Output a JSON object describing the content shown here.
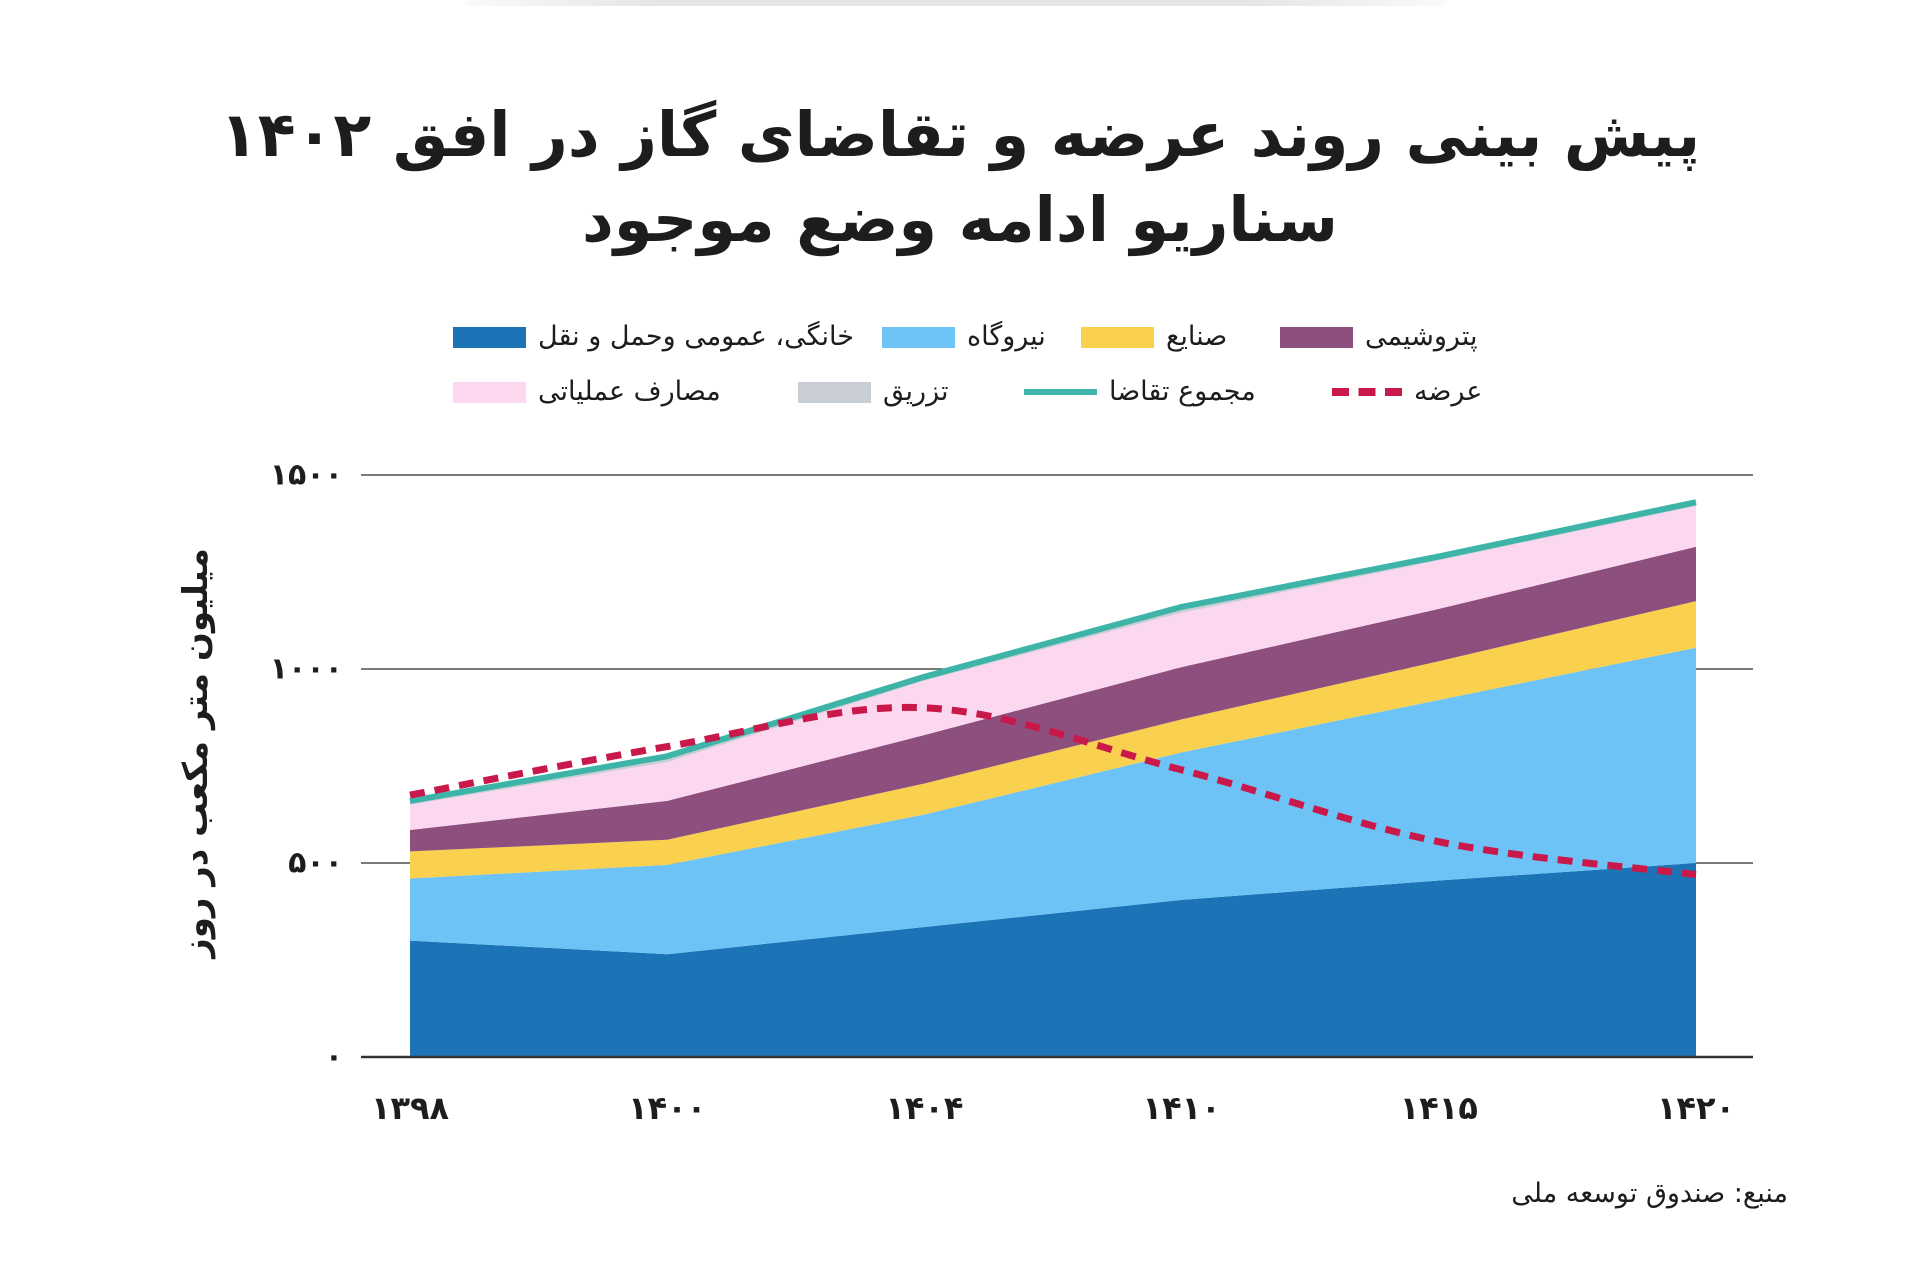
{
  "chart_data": {
    "type": "area",
    "title": "پیش بینی روند عرضه و تقاضای گاز در افق ۱۴۰۲",
    "subtitle": "سناریو ادامه وضع موجود",
    "ylabel": "میلیون متر مکعب در روز",
    "categories": [
      "۱۳۹۸",
      "۱۴۰۰",
      "۱۴۰۴",
      "۱۴۱۰",
      "۱۴۱۵",
      "۱۴۲۰"
    ],
    "ylim": [
      0,
      1500
    ],
    "y_ticks": [
      {
        "value": 0,
        "label": "۰"
      },
      {
        "value": 500,
        "label": "۵۰۰"
      },
      {
        "value": 1000,
        "label": "۱۰۰۰"
      },
      {
        "value": 1500,
        "label": "۱۵۰۰"
      }
    ],
    "grid": true,
    "stacked": true,
    "legend_position": "top",
    "stacked_series": [
      {
        "name": "خانگی، عمومی وحمل و نقل",
        "color": "#1c74b6",
        "values": [
          300,
          265,
          335,
          405,
          455,
          500
        ]
      },
      {
        "name": "نیروگاه",
        "color": "#6ec3f6",
        "values": [
          160,
          230,
          290,
          380,
          465,
          555
        ]
      },
      {
        "name": "صنایع",
        "color": "#fad04f",
        "values": [
          70,
          65,
          80,
          85,
          100,
          120
        ]
      },
      {
        "name": "پتروشیمی",
        "color": "#8d4f7e",
        "values": [
          55,
          100,
          125,
          135,
          135,
          140
        ]
      },
      {
        "name": "مصارف عملیاتی",
        "color": "#fbd8f0",
        "values": [
          65,
          100,
          140,
          140,
          125,
          105
        ]
      },
      {
        "name": "تزریق",
        "color": "#c9cdd6",
        "values": [
          10,
          15,
          10,
          15,
          10,
          10
        ]
      }
    ],
    "line_series": [
      {
        "name": "مجموع تقاضا",
        "color": "#3db4a7",
        "dashed": false,
        "smooth": false,
        "values": [
          660,
          775,
          980,
          1160,
          1290,
          1430
        ]
      },
      {
        "name": "عرضه",
        "color": "#c9184a",
        "dashed": true,
        "smooth": true,
        "values": [
          675,
          800,
          900,
          740,
          555,
          470
        ]
      }
    ]
  },
  "footer": {
    "source": "منبع: صندوق توسعه ملی"
  }
}
